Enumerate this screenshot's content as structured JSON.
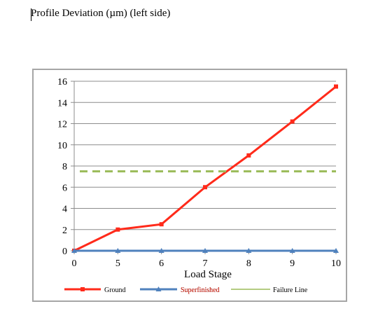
{
  "document": {
    "title": "Profile Deviation (µm) (left side)"
  },
  "chart_data": {
    "type": "line",
    "title": "",
    "xlabel": "Load Stage",
    "ylabel": "",
    "categories": [
      "0",
      "5",
      "6",
      "7",
      "8",
      "9",
      "10"
    ],
    "ylim": [
      0,
      16
    ],
    "yticks": [
      0,
      2,
      4,
      6,
      8,
      10,
      12,
      14,
      16
    ],
    "grid": true,
    "legend_position": "bottom",
    "series": [
      {
        "name": "Ground",
        "color": "#ff2a1a",
        "marker": "square",
        "values": [
          0,
          2,
          2.5,
          6,
          9,
          12.2,
          15.5
        ]
      },
      {
        "name": "Superfinished",
        "color": "#4f81bd",
        "marker": "triangle",
        "values": [
          0,
          0,
          0,
          0,
          0,
          0,
          0
        ]
      },
      {
        "name": "Failure Line",
        "color": "#9bbb59",
        "style": "dashed",
        "values": [
          7.5,
          7.5,
          7.5,
          7.5,
          7.5,
          7.5,
          7.5
        ]
      }
    ],
    "legend": {
      "overlay_text": "Superfinished",
      "overlay_color": "#ff2a1a"
    }
  }
}
